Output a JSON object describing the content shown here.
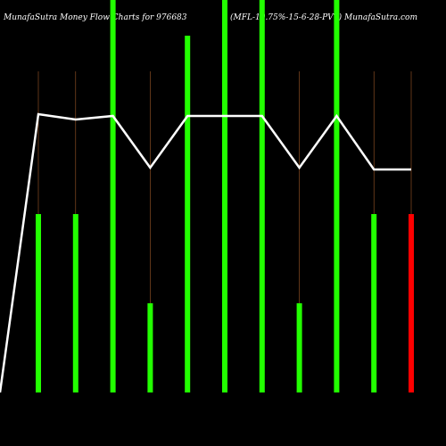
{
  "header": {
    "left_title": "MunafaSutra  Money Flow  Charts for 976683",
    "right_title": "(MFL-10.75%-15-6-28-PVT) MunafaSutra.com"
  },
  "colors": {
    "background": "#000000",
    "up_bar": "#22ff00",
    "down_bar": "#ff0000",
    "guide_line": "#a05a28",
    "price_line": "#ffffff"
  },
  "chart_data": {
    "type": "bar",
    "title": "MunafaSutra  Money Flow  Charts for 976683",
    "subtitle": "(MFL-10.75%-15-6-28-PVT) MunafaSutra.com",
    "xlabel": "",
    "ylabel": "",
    "ylim": [
      0,
      100
    ],
    "grid": false,
    "legend": "none",
    "categories": [
      "",
      "",
      "",
      "",
      "",
      "",
      "",
      "",
      "",
      "",
      "",
      ""
    ],
    "volume_bars": [
      {
        "value": 50,
        "direction": "up"
      },
      {
        "value": 50,
        "direction": "up"
      },
      {
        "value": 110,
        "direction": "up"
      },
      {
        "value": 25,
        "direction": "up"
      },
      {
        "value": 100,
        "direction": "up"
      },
      {
        "value": 110,
        "direction": "up"
      },
      {
        "value": 110,
        "direction": "up"
      },
      {
        "value": 25,
        "direction": "up"
      },
      {
        "value": 110,
        "direction": "up"
      },
      {
        "value": 50,
        "direction": "up"
      },
      {
        "value": 50,
        "direction": "down"
      }
    ],
    "price_line": {
      "points": [
        {
          "x": 0,
          "y": 0
        },
        {
          "x": 1,
          "y": 78
        },
        {
          "x": 2,
          "y": 76.5
        },
        {
          "x": 3,
          "y": 77.5
        },
        {
          "x": 4,
          "y": 63
        },
        {
          "x": 5,
          "y": 77.5
        },
        {
          "x": 6,
          "y": 77.5
        },
        {
          "x": 7,
          "y": 77.5
        },
        {
          "x": 8,
          "y": 63
        },
        {
          "x": 9,
          "y": 77.5
        },
        {
          "x": 10,
          "y": 62.5
        },
        {
          "x": 11,
          "y": 62.5
        }
      ]
    }
  }
}
